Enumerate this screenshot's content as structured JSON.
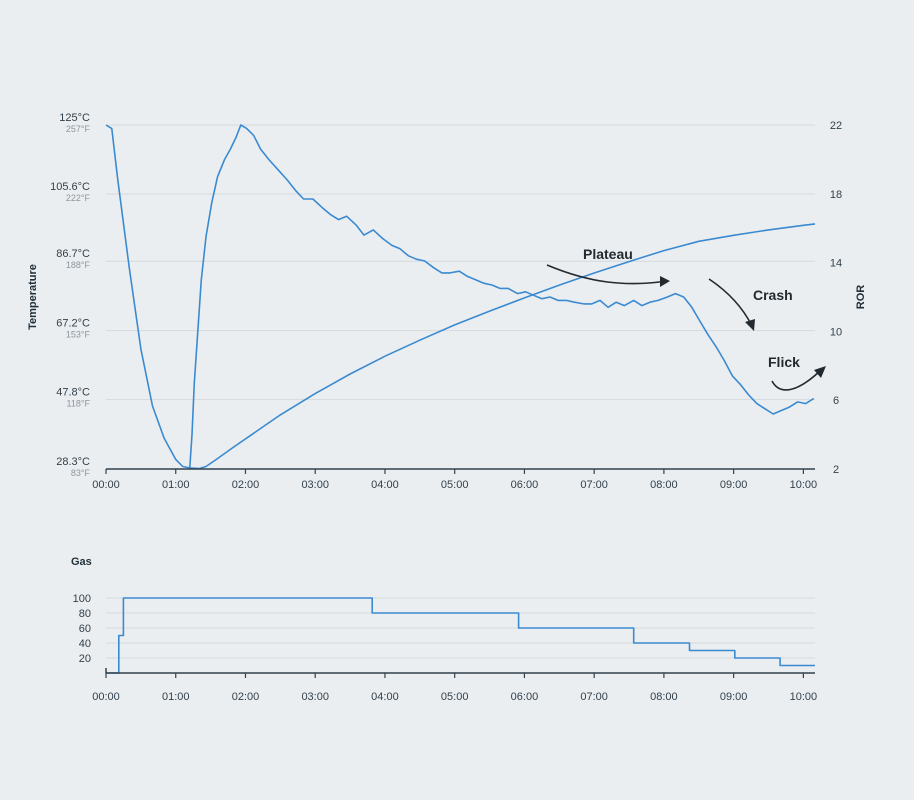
{
  "chart_data": [
    {
      "type": "line",
      "ylabel_left": "Temperature",
      "ylabel_right": "ROR",
      "x_ticks": [
        "00:00",
        "01:00",
        "02:00",
        "03:00",
        "04:00",
        "05:00",
        "06:00",
        "07:00",
        "08:00",
        "09:00",
        "10:00"
      ],
      "x_range_seconds": [
        0,
        610
      ],
      "y_left_range_c": [
        28.3,
        125
      ],
      "y_left_ticks": [
        {
          "c": "125°C",
          "f": "257°F",
          "value": 125
        },
        {
          "c": "105.6°C",
          "f": "222°F",
          "value": 105.6
        },
        {
          "c": "86.7°C",
          "f": "188°F",
          "value": 86.7
        },
        {
          "c": "67.2°C",
          "f": "153°F",
          "value": 67.2
        },
        {
          "c": "47.8°C",
          "f": "118°F",
          "value": 47.8
        },
        {
          "c": "28.3°C",
          "f": "83°F",
          "value": 28.3
        }
      ],
      "y_right_range": [
        2,
        22
      ],
      "y_right_ticks": [
        "22",
        "18",
        "14",
        "10",
        "6",
        "2"
      ],
      "series": [
        {
          "axis": "left",
          "color": "#3a8ad1",
          "points": [
            [
              0,
              125
            ],
            [
              5,
              124
            ],
            [
              10,
              110
            ],
            [
              20,
              85
            ],
            [
              30,
              62
            ],
            [
              40,
              46
            ],
            [
              50,
              37
            ],
            [
              60,
              31
            ],
            [
              66,
              29
            ],
            [
              72,
              28.6
            ],
            [
              80,
              28.4
            ],
            [
              86,
              29
            ],
            [
              95,
              31
            ],
            [
              110,
              34.5
            ],
            [
              130,
              39
            ],
            [
              150,
              43.5
            ],
            [
              180,
              49.5
            ],
            [
              210,
              55
            ],
            [
              240,
              60
            ],
            [
              270,
              64.5
            ],
            [
              300,
              68.8
            ],
            [
              330,
              72.7
            ],
            [
              360,
              76.4
            ],
            [
              390,
              80
            ],
            [
              420,
              83.4
            ],
            [
              450,
              86.6
            ],
            [
              480,
              89.7
            ],
            [
              510,
              92.3
            ],
            [
              540,
              94
            ],
            [
              570,
              95.5
            ],
            [
              600,
              96.8
            ],
            [
              610,
              97.2
            ]
          ]
        },
        {
          "axis": "right",
          "color": "#3a8ad1",
          "points": [
            [
              72,
              2
            ],
            [
              74,
              4
            ],
            [
              76,
              7
            ],
            [
              79,
              10
            ],
            [
              82,
              13
            ],
            [
              86,
              15.5
            ],
            [
              91,
              17.5
            ],
            [
              96,
              19
            ],
            [
              102,
              20
            ],
            [
              107,
              20.6
            ],
            [
              112,
              21.3
            ],
            [
              116,
              22
            ],
            [
              121,
              21.8
            ],
            [
              127,
              21.4
            ],
            [
              133,
              20.6
            ],
            [
              140,
              20
            ],
            [
              148,
              19.4
            ],
            [
              156,
              18.8
            ],
            [
              163,
              18.2
            ],
            [
              170,
              17.7
            ],
            [
              178,
              17.7
            ],
            [
              186,
              17.2
            ],
            [
              193,
              16.8
            ],
            [
              200,
              16.5
            ],
            [
              207,
              16.7
            ],
            [
              215,
              16.2
            ],
            [
              222,
              15.6
            ],
            [
              230,
              15.9
            ],
            [
              238,
              15.4
            ],
            [
              246,
              15
            ],
            [
              253,
              14.8
            ],
            [
              260,
              14.4
            ],
            [
              267,
              14.2
            ],
            [
              274,
              14.1
            ],
            [
              282,
              13.7
            ],
            [
              289,
              13.4
            ],
            [
              296,
              13.4
            ],
            [
              304,
              13.5
            ],
            [
              311,
              13.2
            ],
            [
              318,
              13
            ],
            [
              325,
              12.8
            ],
            [
              332,
              12.7
            ],
            [
              339,
              12.5
            ],
            [
              346,
              12.5
            ],
            [
              354,
              12.2
            ],
            [
              361,
              12.3
            ],
            [
              368,
              12.1
            ],
            [
              375,
              11.9
            ],
            [
              382,
              12
            ],
            [
              389,
              11.8
            ],
            [
              396,
              11.8
            ],
            [
              403,
              11.7
            ],
            [
              411,
              11.6
            ],
            [
              418,
              11.6
            ],
            [
              425,
              11.8
            ],
            [
              432,
              11.4
            ],
            [
              439,
              11.7
            ],
            [
              446,
              11.5
            ],
            [
              454,
              11.8
            ],
            [
              461,
              11.5
            ],
            [
              468,
              11.7
            ],
            [
              475,
              11.8
            ],
            [
              483,
              12
            ],
            [
              490,
              12.2
            ],
            [
              497,
              12
            ],
            [
              504,
              11.4
            ],
            [
              511,
              10.6
            ],
            [
              518,
              9.8
            ],
            [
              525,
              9.1
            ],
            [
              532,
              8.3
            ],
            [
              539,
              7.4
            ],
            [
              546,
              6.9
            ],
            [
              553,
              6.3
            ],
            [
              560,
              5.8
            ],
            [
              567,
              5.5
            ],
            [
              574,
              5.2
            ],
            [
              581,
              5.4
            ],
            [
              588,
              5.6
            ],
            [
              595,
              5.9
            ],
            [
              602,
              5.8
            ],
            [
              609,
              6.1
            ]
          ]
        }
      ]
    },
    {
      "type": "line",
      "ylabel": "Gas",
      "x_ticks": [
        "00:00",
        "01:00",
        "02:00",
        "03:00",
        "04:00",
        "05:00",
        "06:00",
        "07:00",
        "08:00",
        "09:00",
        "10:00"
      ],
      "x_range_seconds": [
        0,
        610
      ],
      "y_range": [
        0,
        100
      ],
      "y_ticks": [
        "100",
        "80",
        "60",
        "40",
        "20"
      ],
      "series": [
        {
          "color": "#3a8ad1",
          "step_points": [
            [
              0,
              0
            ],
            [
              11,
              0
            ],
            [
              11,
              50
            ],
            [
              15,
              50
            ],
            [
              15,
              100
            ],
            [
              229,
              100
            ],
            [
              229,
              80
            ],
            [
              355,
              80
            ],
            [
              355,
              60
            ],
            [
              454,
              60
            ],
            [
              454,
              40
            ],
            [
              502,
              40
            ],
            [
              502,
              30
            ],
            [
              541,
              30
            ],
            [
              541,
              20
            ],
            [
              580,
              20
            ],
            [
              580,
              10
            ],
            [
              610,
              10
            ]
          ]
        }
      ]
    }
  ],
  "annotations": [
    {
      "label": "Plateau"
    },
    {
      "label": "Crash"
    },
    {
      "label": "Flick"
    }
  ]
}
